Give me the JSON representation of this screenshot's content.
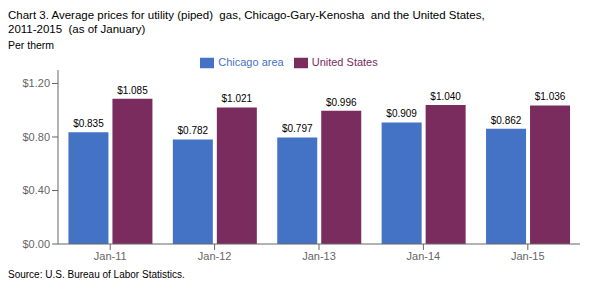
{
  "chart_data": {
    "type": "bar",
    "title": "Chart 3. Average prices for utility (piped)  gas, Chicago-Gary-Kenosha  and the United States,",
    "subtitle": "2011-2015  (as of January)",
    "ylabel": "Per therm",
    "source": "Source: U.S. Bureau of Labor Statistics.",
    "categories": [
      "Jan-11",
      "Jan-12",
      "Jan-13",
      "Jan-14",
      "Jan-15"
    ],
    "series": [
      {
        "name": "Chicago area",
        "color": "#4472C4",
        "values": [
          0.835,
          0.782,
          0.797,
          0.909,
          0.862
        ],
        "value_labels": [
          "$0.835",
          "$0.782",
          "$0.797",
          "$0.909",
          "$0.862"
        ]
      },
      {
        "name": "United States",
        "color": "#7B2C5E",
        "values": [
          1.085,
          1.021,
          0.996,
          1.04,
          1.036
        ],
        "value_labels": [
          "$1.085",
          "$1.021",
          "$0.996",
          "$1.040",
          "$1.036"
        ]
      }
    ],
    "ylim": [
      0,
      1.3
    ],
    "yticks": [
      {
        "value": 0.0,
        "label": "$0.00"
      },
      {
        "value": 0.4,
        "label": "$0.40"
      },
      {
        "value": 0.8,
        "label": "$0.80"
      },
      {
        "value": 1.2,
        "label": "$1.20"
      }
    ],
    "data_labels": true,
    "legend": "top",
    "grid": false
  }
}
